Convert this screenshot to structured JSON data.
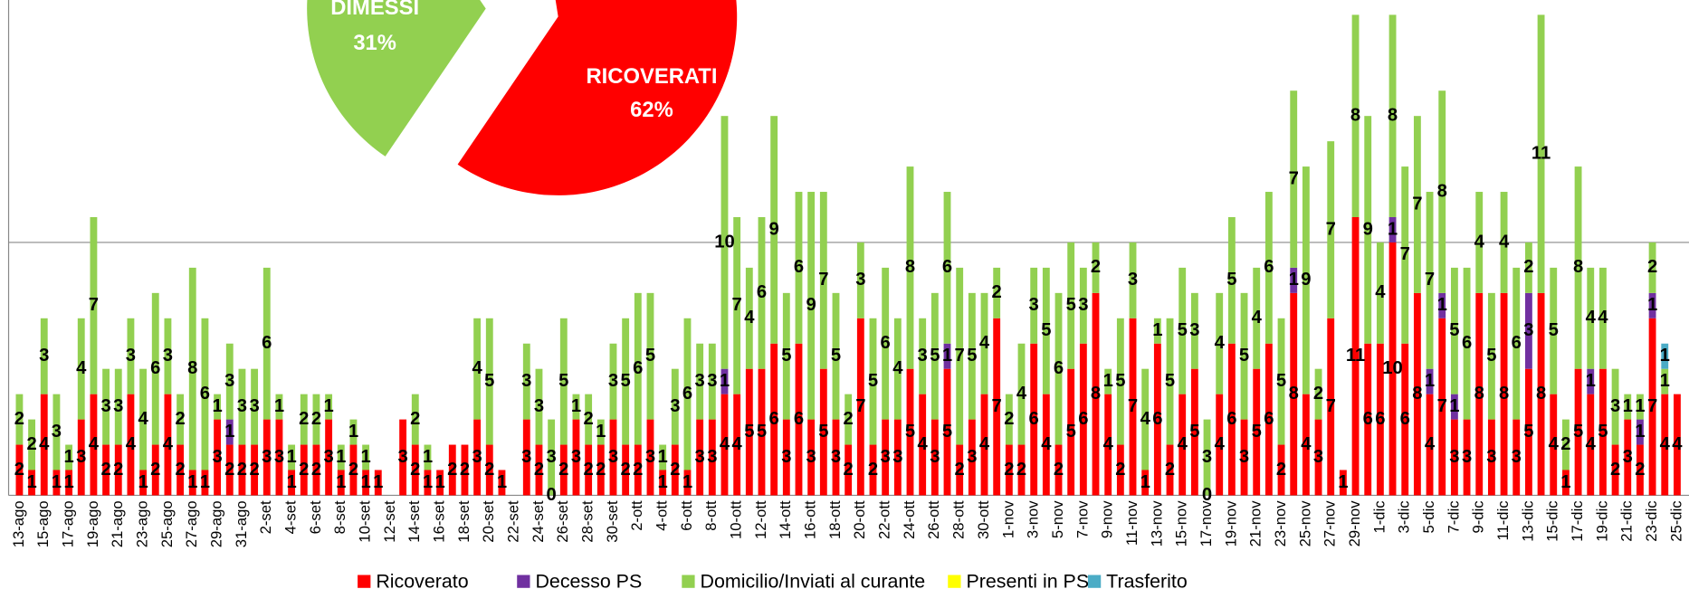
{
  "chart_data": [
    {
      "type": "pie",
      "labels": [
        "RICOVERATI",
        "DIMESSI"
      ],
      "values": [
        62,
        31
      ],
      "value_labels": [
        "62%",
        "31%"
      ],
      "colors": [
        "#ff0000",
        "#92d050"
      ]
    },
    {
      "type": "bar",
      "stacked": true,
      "categories": [
        "13-ago",
        null,
        "15-ago",
        null,
        "17-ago",
        null,
        "19-ago",
        null,
        "21-ago",
        null,
        "23-ago",
        null,
        "25-ago",
        null,
        "27-ago",
        null,
        "29-ago",
        null,
        "31-ago",
        null,
        "2-set",
        null,
        "4-set",
        null,
        "6-set",
        null,
        "8-set",
        null,
        "10-set",
        null,
        "12-set",
        null,
        "14-set",
        null,
        "16-set",
        null,
        "18-set",
        null,
        "20-set",
        null,
        "22-set",
        null,
        "24-set",
        null,
        "26-set",
        null,
        "28-set",
        null,
        "30-set",
        null,
        "2-ott",
        null,
        "4-ott",
        null,
        "6-ott",
        null,
        "8-ott",
        null,
        "10-ott",
        null,
        "12-ott",
        null,
        "14-ott",
        null,
        "16-ott",
        null,
        "18-ott",
        null,
        "20-ott",
        null,
        "22-ott",
        null,
        "24-ott",
        null,
        "26-ott",
        null,
        "28-ott",
        null,
        "30-ott",
        null,
        "1-nov",
        null,
        "3-nov",
        null,
        "5-nov",
        null,
        "7-nov",
        null,
        "9-nov",
        null,
        "11-nov",
        null,
        "13-nov",
        null,
        "15-nov",
        null,
        "17-nov",
        null,
        "19-nov",
        null,
        "21-nov",
        null,
        "23-nov",
        null,
        "25-nov",
        null,
        "27-nov",
        null,
        "29-nov",
        null,
        "1-dic",
        null,
        "3-dic",
        null,
        "5-dic",
        null,
        "7-dic",
        null,
        "9-dic",
        null,
        "11-dic",
        null,
        "13-dic",
        null,
        "15-dic",
        null,
        "17-dic",
        null,
        "19-dic",
        null,
        "21-dic",
        null,
        "23-dic",
        null,
        "25-dic"
      ],
      "series": [
        {
          "name": "Ricoverato",
          "color": "#ff0000",
          "values": [
            2,
            1,
            4,
            1,
            1,
            3,
            4,
            2,
            2,
            4,
            1,
            2,
            4,
            2,
            1,
            1,
            3,
            2,
            2,
            2,
            3,
            3,
            1,
            2,
            2,
            3,
            1,
            2,
            1,
            1,
            0,
            3,
            2,
            1,
            1,
            2,
            2,
            3,
            2,
            1,
            0,
            3,
            2,
            0,
            2,
            3,
            2,
            2,
            3,
            2,
            2,
            3,
            1,
            2,
            1,
            3,
            3,
            4,
            4,
            5,
            5,
            6,
            3,
            6,
            3,
            5,
            3,
            2,
            7,
            2,
            3,
            3,
            5,
            4,
            3,
            5,
            2,
            3,
            4,
            7,
            2,
            2,
            6,
            4,
            2,
            5,
            6,
            8,
            4,
            2,
            7,
            1,
            6,
            2,
            4,
            5,
            0,
            4,
            6,
            3,
            5,
            6,
            2,
            8,
            4,
            3,
            7,
            1,
            11,
            6,
            6,
            10,
            6,
            8,
            4,
            7,
            3,
            3,
            8,
            3,
            8,
            3,
            5,
            8,
            4,
            1,
            5,
            4,
            5,
            2,
            3,
            2,
            7,
            4,
            4
          ]
        },
        {
          "name": "Decesso PS",
          "color": "#7030a0",
          "values": [
            0,
            0,
            0,
            0,
            0,
            0,
            0,
            0,
            0,
            0,
            0,
            0,
            0,
            0,
            0,
            0,
            0,
            1,
            0,
            0,
            0,
            0,
            0,
            0,
            0,
            0,
            0,
            0,
            0,
            0,
            0,
            0,
            0,
            0,
            0,
            0,
            0,
            0,
            0,
            0,
            0,
            0,
            0,
            0,
            0,
            0,
            0,
            0,
            0,
            0,
            0,
            0,
            0,
            0,
            0,
            0,
            0,
            1,
            0,
            0,
            0,
            0,
            0,
            0,
            0,
            0,
            0,
            0,
            0,
            0,
            0,
            0,
            0,
            0,
            0,
            1,
            0,
            0,
            0,
            0,
            0,
            0,
            0,
            0,
            0,
            0,
            0,
            0,
            0,
            0,
            0,
            0,
            0,
            0,
            0,
            0,
            0,
            0,
            0,
            0,
            0,
            0,
            0,
            1,
            0,
            0,
            0,
            0,
            0,
            0,
            0,
            1,
            0,
            0,
            1,
            1,
            1,
            0,
            0,
            0,
            0,
            0,
            3,
            0,
            0,
            0,
            0,
            1,
            0,
            0,
            0,
            1,
            1,
            0,
            0
          ]
        },
        {
          "name": "Domicilio/Inviati al curante",
          "color": "#92d050",
          "values": [
            2,
            2,
            3,
            3,
            1,
            4,
            7,
            3,
            3,
            3,
            4,
            6,
            3,
            2,
            8,
            6,
            1,
            3,
            3,
            3,
            6,
            1,
            1,
            2,
            2,
            1,
            1,
            1,
            1,
            0,
            0,
            0,
            2,
            1,
            0,
            0,
            0,
            4,
            5,
            0,
            0,
            3,
            3,
            3,
            5,
            1,
            2,
            1,
            3,
            5,
            6,
            5,
            1,
            3,
            6,
            3,
            3,
            10,
            7,
            4,
            6,
            9,
            5,
            6,
            9,
            7,
            5,
            2,
            3,
            5,
            6,
            4,
            8,
            3,
            5,
            6,
            7,
            5,
            4,
            2,
            2,
            4,
            3,
            5,
            6,
            5,
            3,
            2,
            1,
            5,
            3,
            4,
            1,
            5,
            5,
            3,
            3,
            4,
            5,
            5,
            4,
            6,
            5,
            7,
            9,
            2,
            7,
            0,
            8,
            9,
            4,
            8,
            7,
            7,
            7,
            8,
            5,
            6,
            4,
            5,
            4,
            6,
            2,
            11,
            5,
            2,
            8,
            4,
            4,
            3,
            1,
            1,
            2,
            1,
            0
          ]
        },
        {
          "name": "Presenti in PS",
          "color": "#ffff00",
          "values": [
            0,
            0,
            0,
            0,
            0,
            0,
            0,
            0,
            0,
            0,
            0,
            0,
            0,
            0,
            0,
            0,
            0,
            0,
            0,
            0,
            0,
            0,
            0,
            0,
            0,
            0,
            0,
            0,
            0,
            0,
            0,
            0,
            0,
            0,
            0,
            0,
            0,
            0,
            0,
            0,
            0,
            0,
            0,
            0,
            0,
            0,
            0,
            0,
            0,
            0,
            0,
            0,
            0,
            0,
            0,
            0,
            0,
            0,
            0,
            0,
            0,
            0,
            0,
            0,
            0,
            0,
            0,
            0,
            0,
            0,
            0,
            0,
            0,
            0,
            0,
            0,
            0,
            0,
            0,
            0,
            0,
            0,
            0,
            0,
            0,
            0,
            0,
            0,
            0,
            0,
            0,
            0,
            0,
            0,
            0,
            0,
            0,
            0,
            0,
            0,
            0,
            0,
            0,
            0,
            0,
            0,
            0,
            0,
            0,
            0,
            0,
            0,
            0,
            0,
            0,
            0,
            0,
            0,
            0,
            0,
            0,
            0,
            0,
            0,
            0,
            0,
            0,
            0,
            0,
            0,
            0,
            0,
            0,
            0,
            0
          ]
        },
        {
          "name": "Trasferito",
          "color": "#4bacc6",
          "values": [
            0,
            0,
            0,
            0,
            0,
            0,
            0,
            0,
            0,
            0,
            0,
            0,
            0,
            0,
            0,
            0,
            0,
            0,
            0,
            0,
            0,
            0,
            0,
            0,
            0,
            0,
            0,
            0,
            0,
            0,
            0,
            0,
            0,
            0,
            0,
            0,
            0,
            0,
            0,
            0,
            0,
            0,
            0,
            0,
            0,
            0,
            0,
            0,
            0,
            0,
            0,
            0,
            0,
            0,
            0,
            0,
            0,
            0,
            0,
            0,
            0,
            0,
            0,
            0,
            0,
            0,
            0,
            0,
            0,
            0,
            0,
            0,
            0,
            0,
            0,
            0,
            0,
            0,
            0,
            0,
            0,
            0,
            0,
            0,
            0,
            0,
            0,
            0,
            0,
            0,
            0,
            0,
            0,
            0,
            0,
            0,
            0,
            0,
            0,
            0,
            0,
            0,
            0,
            0,
            0,
            0,
            0,
            0,
            0,
            0,
            0,
            0,
            0,
            0,
            0,
            0,
            0,
            0,
            0,
            0,
            0,
            0,
            0,
            0,
            0,
            0,
            0,
            0,
            0,
            0,
            0,
            0,
            0,
            1,
            0
          ]
        }
      ],
      "ylim": [
        0,
        19.5
      ],
      "grid_lines": [
        10
      ],
      "legend": "bottom"
    }
  ]
}
